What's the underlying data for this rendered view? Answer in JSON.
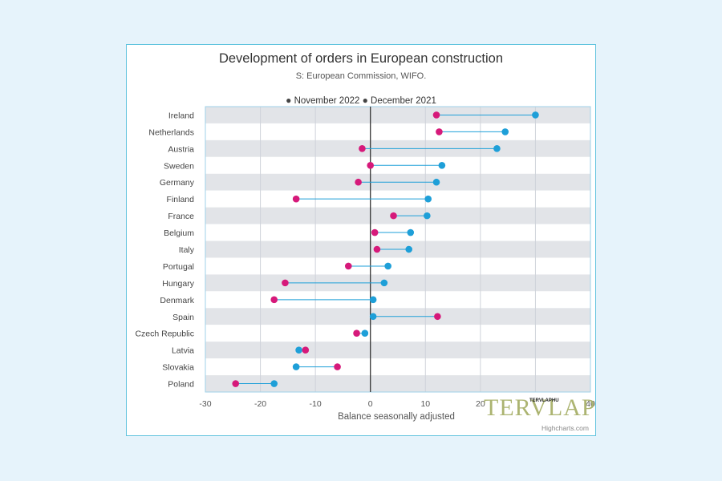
{
  "chart_data": {
    "type": "dumbbell",
    "title": "Development of orders in European construction",
    "subtitle": "S: European Commission, WIFO.",
    "xlabel": "Balance seasonally adjusted",
    "ylabel": "",
    "xlim": [
      -30,
      40
    ],
    "xticks": [
      -30,
      -20,
      -10,
      0,
      10,
      20,
      30,
      40
    ],
    "xtick_labels": [
      "-30",
      "-20",
      "-10",
      "0",
      "10",
      "20",
      "",
      "40"
    ],
    "legend_position": "top",
    "categories": [
      "Ireland",
      "Netherlands",
      "Austria",
      "Sweden",
      "Germany",
      "Finland",
      "France",
      "Belgium",
      "Italy",
      "Portugal",
      "Hungary",
      "Denmark",
      "Spain",
      "Czech Republic",
      "Latvia",
      "Slovakia",
      "Poland"
    ],
    "series": [
      {
        "name": "November 2022",
        "color": "#d6197a",
        "values": [
          12,
          12.5,
          -1.5,
          0,
          -2.2,
          -13.5,
          4.2,
          0.8,
          1.2,
          -4,
          -15.5,
          -17.5,
          12.2,
          -2.5,
          -11.8,
          -6,
          -24.5
        ]
      },
      {
        "name": "December 2021",
        "color": "#1e9fd8",
        "values": [
          30,
          24.5,
          23,
          13,
          12,
          10.5,
          10.3,
          7.3,
          7,
          3.2,
          2.5,
          0.5,
          0.5,
          -1,
          -13,
          -13.5,
          -17.5
        ]
      }
    ]
  },
  "legend": {
    "bullet": "●"
  },
  "credits": "Highcharts.com",
  "watermark": {
    "text": "TERVLAP",
    "small_text": "TERVLAPHU"
  }
}
